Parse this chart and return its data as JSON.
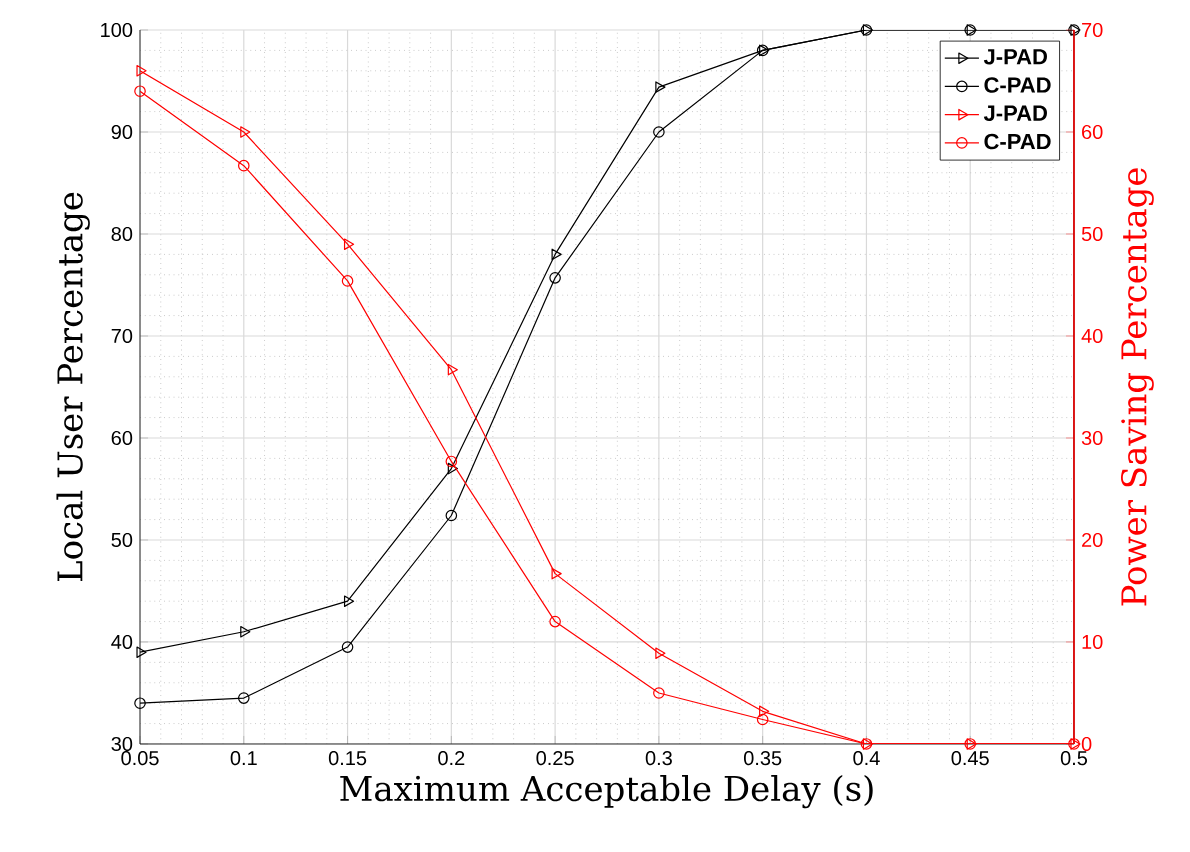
{
  "chart_data": {
    "type": "line",
    "x": [
      0.05,
      0.1,
      0.15,
      0.2,
      0.25,
      0.3,
      0.35,
      0.4,
      0.45,
      0.5
    ],
    "series": [
      {
        "name": "J-PAD",
        "color": "#000000",
        "marker": "triangle",
        "values": [
          39,
          41,
          44,
          57,
          78,
          94.4,
          98,
          100,
          100,
          100
        ]
      },
      {
        "name": "C-PAD",
        "color": "#000000",
        "marker": "circle",
        "values": [
          34,
          34.5,
          39.5,
          52.4,
          75.7,
          90,
          98,
          100,
          100,
          100
        ]
      },
      {
        "name": "J-PAD",
        "color": "#ff0000",
        "marker": "triangle",
        "axis": "y2",
        "values": [
          66,
          60,
          49,
          36.7,
          16.7,
          8.9,
          3.2,
          0,
          0,
          0
        ]
      },
      {
        "name": "C-PAD",
        "color": "#ff0000",
        "marker": "circle",
        "axis": "y2",
        "values": [
          64,
          56.7,
          45.4,
          27.7,
          12,
          5,
          2.4,
          0,
          0,
          0
        ]
      }
    ],
    "xlabel": "Maximum Acceptable Delay (s)",
    "ylabel": "Local User Percentage",
    "y2label": "Power Saving Percentage",
    "xlim": [
      0.05,
      0.5
    ],
    "xticks": [
      0.05,
      0.1,
      0.15,
      0.2,
      0.25,
      0.3,
      0.35,
      0.4,
      0.45,
      0.5
    ],
    "ylim": [
      30,
      100
    ],
    "yticks": [
      30,
      40,
      50,
      60,
      70,
      80,
      90,
      100
    ],
    "y2lim": [
      0,
      70
    ],
    "y2ticks": [
      0,
      10,
      20,
      30,
      40,
      50,
      60,
      70
    ],
    "grid": true,
    "legend": "top right",
    "line_style": "solid"
  }
}
